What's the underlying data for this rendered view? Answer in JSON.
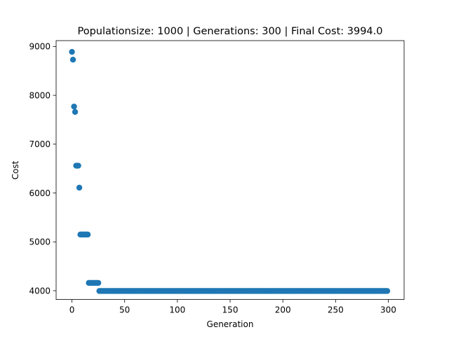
{
  "chart_data": {
    "type": "scatter",
    "title": "Populationsize: 1000 | Generations: 300 | Final Cost: 3994.0",
    "xlabel": "Generation",
    "ylabel": "Cost",
    "xlim": [
      -15,
      315
    ],
    "ylim": [
      3820,
      9120
    ],
    "xticks": [
      0,
      50,
      100,
      150,
      200,
      250,
      300
    ],
    "yticks": [
      4000,
      5000,
      6000,
      7000,
      8000,
      9000
    ],
    "marker_color": "#1f77b4",
    "grid": false,
    "series": [
      {
        "segments": [
          {
            "from": 0,
            "to": 0,
            "value": 8890
          },
          {
            "from": 1,
            "to": 1,
            "value": 8730
          },
          {
            "from": 2,
            "to": 2,
            "value": 7770
          },
          {
            "from": 3,
            "to": 3,
            "value": 7660
          },
          {
            "from": 4,
            "to": 6,
            "value": 6560
          },
          {
            "from": 7,
            "to": 7,
            "value": 6110
          },
          {
            "from": 8,
            "to": 15,
            "value": 5150
          },
          {
            "from": 16,
            "to": 25,
            "value": 4160
          },
          {
            "from": 26,
            "to": 299,
            "value": 3994
          }
        ]
      }
    ]
  }
}
